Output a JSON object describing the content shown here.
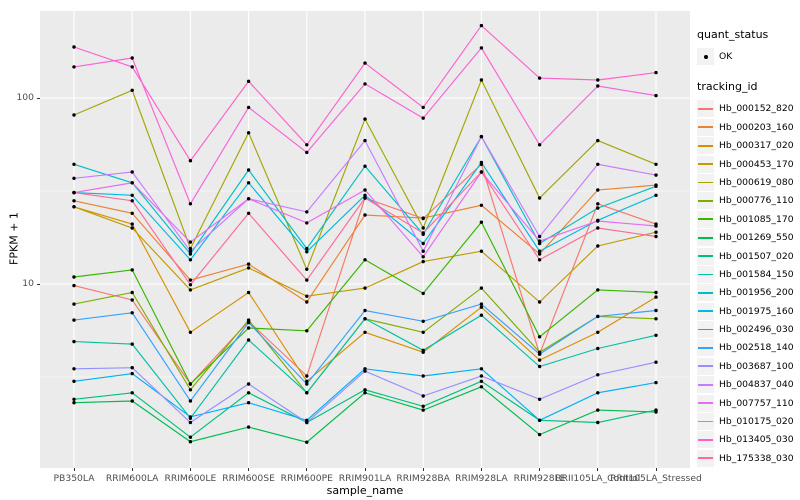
{
  "chart_data": {
    "type": "line",
    "title": "",
    "xlabel": "sample_name",
    "ylabel": "FPKM + 1",
    "y_scale": "log10",
    "y_ticks": [
      10,
      100
    ],
    "y_minor_gridlines": [
      3.162,
      31.62
    ],
    "ylim": [
      1.03,
      295
    ],
    "grid": true,
    "panel_background": "#EBEBEB",
    "gridline_color": "#FFFFFF",
    "point_color": "#000000",
    "legend_position": "right",
    "legend": {
      "quant_status_title": "quant_status",
      "quant_status_items": [
        "OK"
      ],
      "tracking_title": "tracking_id"
    },
    "x_categories": [
      "PB350LA",
      "RRIM600LA",
      "RRIM600LE",
      "RRIM600SE",
      "RRIM600PE",
      "RRIM901LA",
      "RRIM928BA",
      "RRIM928LA",
      "RRIM928LE",
      "RRII105LA_Control",
      "RRII105LA_Stressed"
    ],
    "series": [
      {
        "id": "Hb_000152_820",
        "color": "#F8766D",
        "values": [
          9.8,
          8.2,
          2.9,
          6.3,
          3.2,
          29,
          22.5,
          44,
          4.2,
          27,
          21
        ]
      },
      {
        "id": "Hb_000203_160",
        "color": "#EA8331",
        "values": [
          28,
          24,
          10.5,
          12.8,
          8.0,
          23.5,
          22.6,
          26.5,
          14.5,
          32,
          34
        ]
      },
      {
        "id": "Hb_000317_020",
        "color": "#D89000",
        "values": [
          26,
          21,
          5.5,
          9.0,
          3.0,
          5.5,
          4.3,
          7.5,
          3.9,
          5.5,
          8.5
        ]
      },
      {
        "id": "Hb_000453_170",
        "color": "#C09B00",
        "values": [
          26,
          20,
          9.3,
          12.2,
          8.6,
          9.5,
          13.2,
          15,
          8.0,
          16,
          19
        ]
      },
      {
        "id": "Hb_000619_080",
        "color": "#A3A500",
        "values": [
          81,
          110,
          15.5,
          65,
          12,
          77,
          20,
          125,
          29,
          59,
          44
        ]
      },
      {
        "id": "Hb_000776_110",
        "color": "#7CAE00",
        "values": [
          7.8,
          9.0,
          2.7,
          6.4,
          2.6,
          6.5,
          5.5,
          9.5,
          4.3,
          6.7,
          6.5
        ]
      },
      {
        "id": "Hb_001085_170",
        "color": "#39B600",
        "values": [
          10.9,
          11.9,
          2.9,
          5.8,
          5.6,
          13.5,
          8.9,
          21.5,
          5.2,
          9.3,
          9.0
        ]
      },
      {
        "id": "Hb_001269_550",
        "color": "#00BB4E",
        "values": [
          2.3,
          2.35,
          1.42,
          1.7,
          1.41,
          2.6,
          2.1,
          2.8,
          1.55,
          2.1,
          2.05
        ]
      },
      {
        "id": "Hb_001507_020",
        "color": "#00BF7D",
        "values": [
          2.4,
          2.6,
          1.5,
          2.6,
          1.8,
          2.7,
          2.2,
          3.0,
          1.85,
          1.8,
          2.1
        ]
      },
      {
        "id": "Hb_001584_150",
        "color": "#00C1A3",
        "values": [
          4.9,
          4.75,
          1.9,
          5.0,
          2.6,
          6.5,
          4.4,
          6.8,
          3.6,
          4.5,
          5.3
        ]
      },
      {
        "id": "Hb_001956_200",
        "color": "#00BFC4",
        "values": [
          44,
          35,
          14.5,
          41,
          15.5,
          43,
          18.5,
          62,
          16.5,
          25.6,
          33.5
        ]
      },
      {
        "id": "Hb_001975_160",
        "color": "#00BAE0",
        "values": [
          31,
          30,
          13.5,
          35,
          14.9,
          30,
          16.5,
          45,
          15,
          22,
          30
        ]
      },
      {
        "id": "Hb_002496_030",
        "color": "#00B0F6",
        "values": [
          3.0,
          3.3,
          1.93,
          2.3,
          1.85,
          3.5,
          3.2,
          3.5,
          1.85,
          2.6,
          2.95
        ]
      },
      {
        "id": "Hb_002518_140",
        "color": "#35A2FF",
        "values": [
          6.4,
          7.0,
          2.35,
          6.2,
          2.9,
          7.2,
          6.3,
          7.8,
          4.2,
          6.7,
          7.2
        ]
      },
      {
        "id": "Hb_003687_100",
        "color": "#9590FF",
        "values": [
          3.5,
          3.55,
          1.8,
          2.9,
          1.8,
          3.4,
          2.5,
          3.2,
          2.4,
          3.25,
          3.8
        ]
      },
      {
        "id": "Hb_004837_040",
        "color": "#C77CFF",
        "values": [
          37,
          40,
          15,
          28.7,
          24.4,
          59,
          15,
          62,
          18,
          44,
          38.5
        ]
      },
      {
        "id": "Hb_007757_110",
        "color": "#E76BF3",
        "values": [
          31,
          35,
          16.8,
          28.7,
          21.3,
          32,
          14,
          40,
          17,
          21.8,
          20.5
        ]
      },
      {
        "id": "Hb_010175_020",
        "color": "#FA62DB",
        "values": [
          147,
          164,
          27,
          89,
          51,
          119,
          78,
          186,
          56,
          116,
          103
        ]
      },
      {
        "id": "Hb_013405_030",
        "color": "#FF61CC",
        "values": [
          188,
          147,
          46,
          123,
          56,
          154,
          89,
          245,
          128,
          125,
          137
        ]
      },
      {
        "id": "Hb_175338_030",
        "color": "#FF6A98",
        "values": [
          31,
          28,
          9.9,
          24,
          10.5,
          29,
          18.8,
          40,
          13.5,
          20,
          18
        ]
      }
    ]
  }
}
